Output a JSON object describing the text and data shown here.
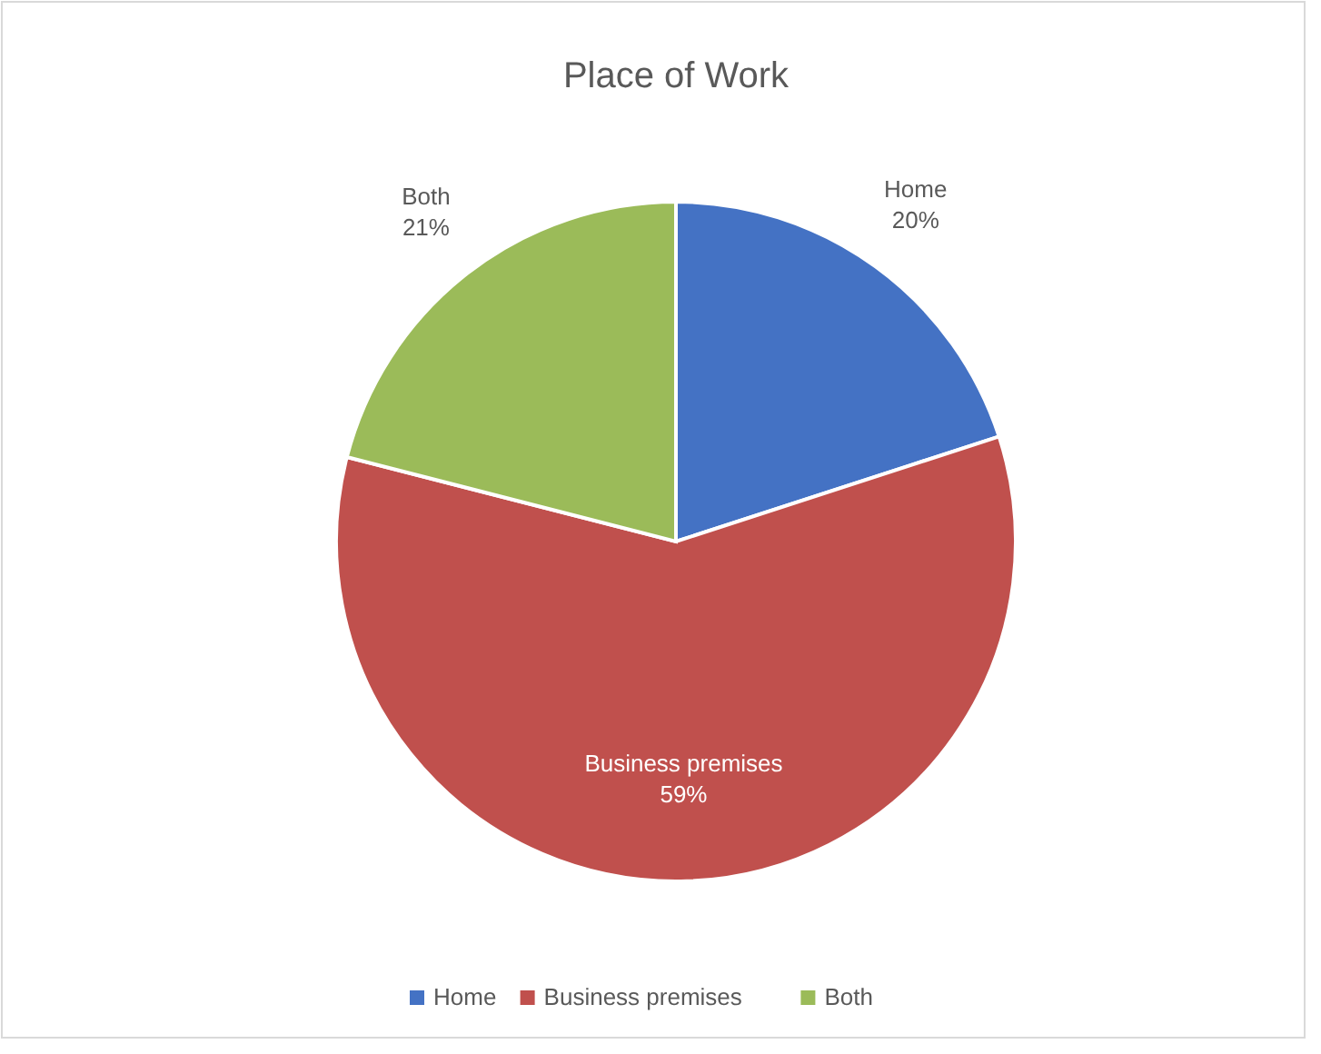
{
  "chart_data": {
    "type": "pie",
    "title": "Place of Work",
    "categories": [
      "Home",
      "Business premises",
      "Both"
    ],
    "values": [
      20,
      59,
      21
    ],
    "colors": [
      "#4472c4",
      "#c0504d",
      "#9bbb59"
    ],
    "value_labels": [
      "20%",
      "59%",
      "21%"
    ],
    "legend": "bottom"
  }
}
